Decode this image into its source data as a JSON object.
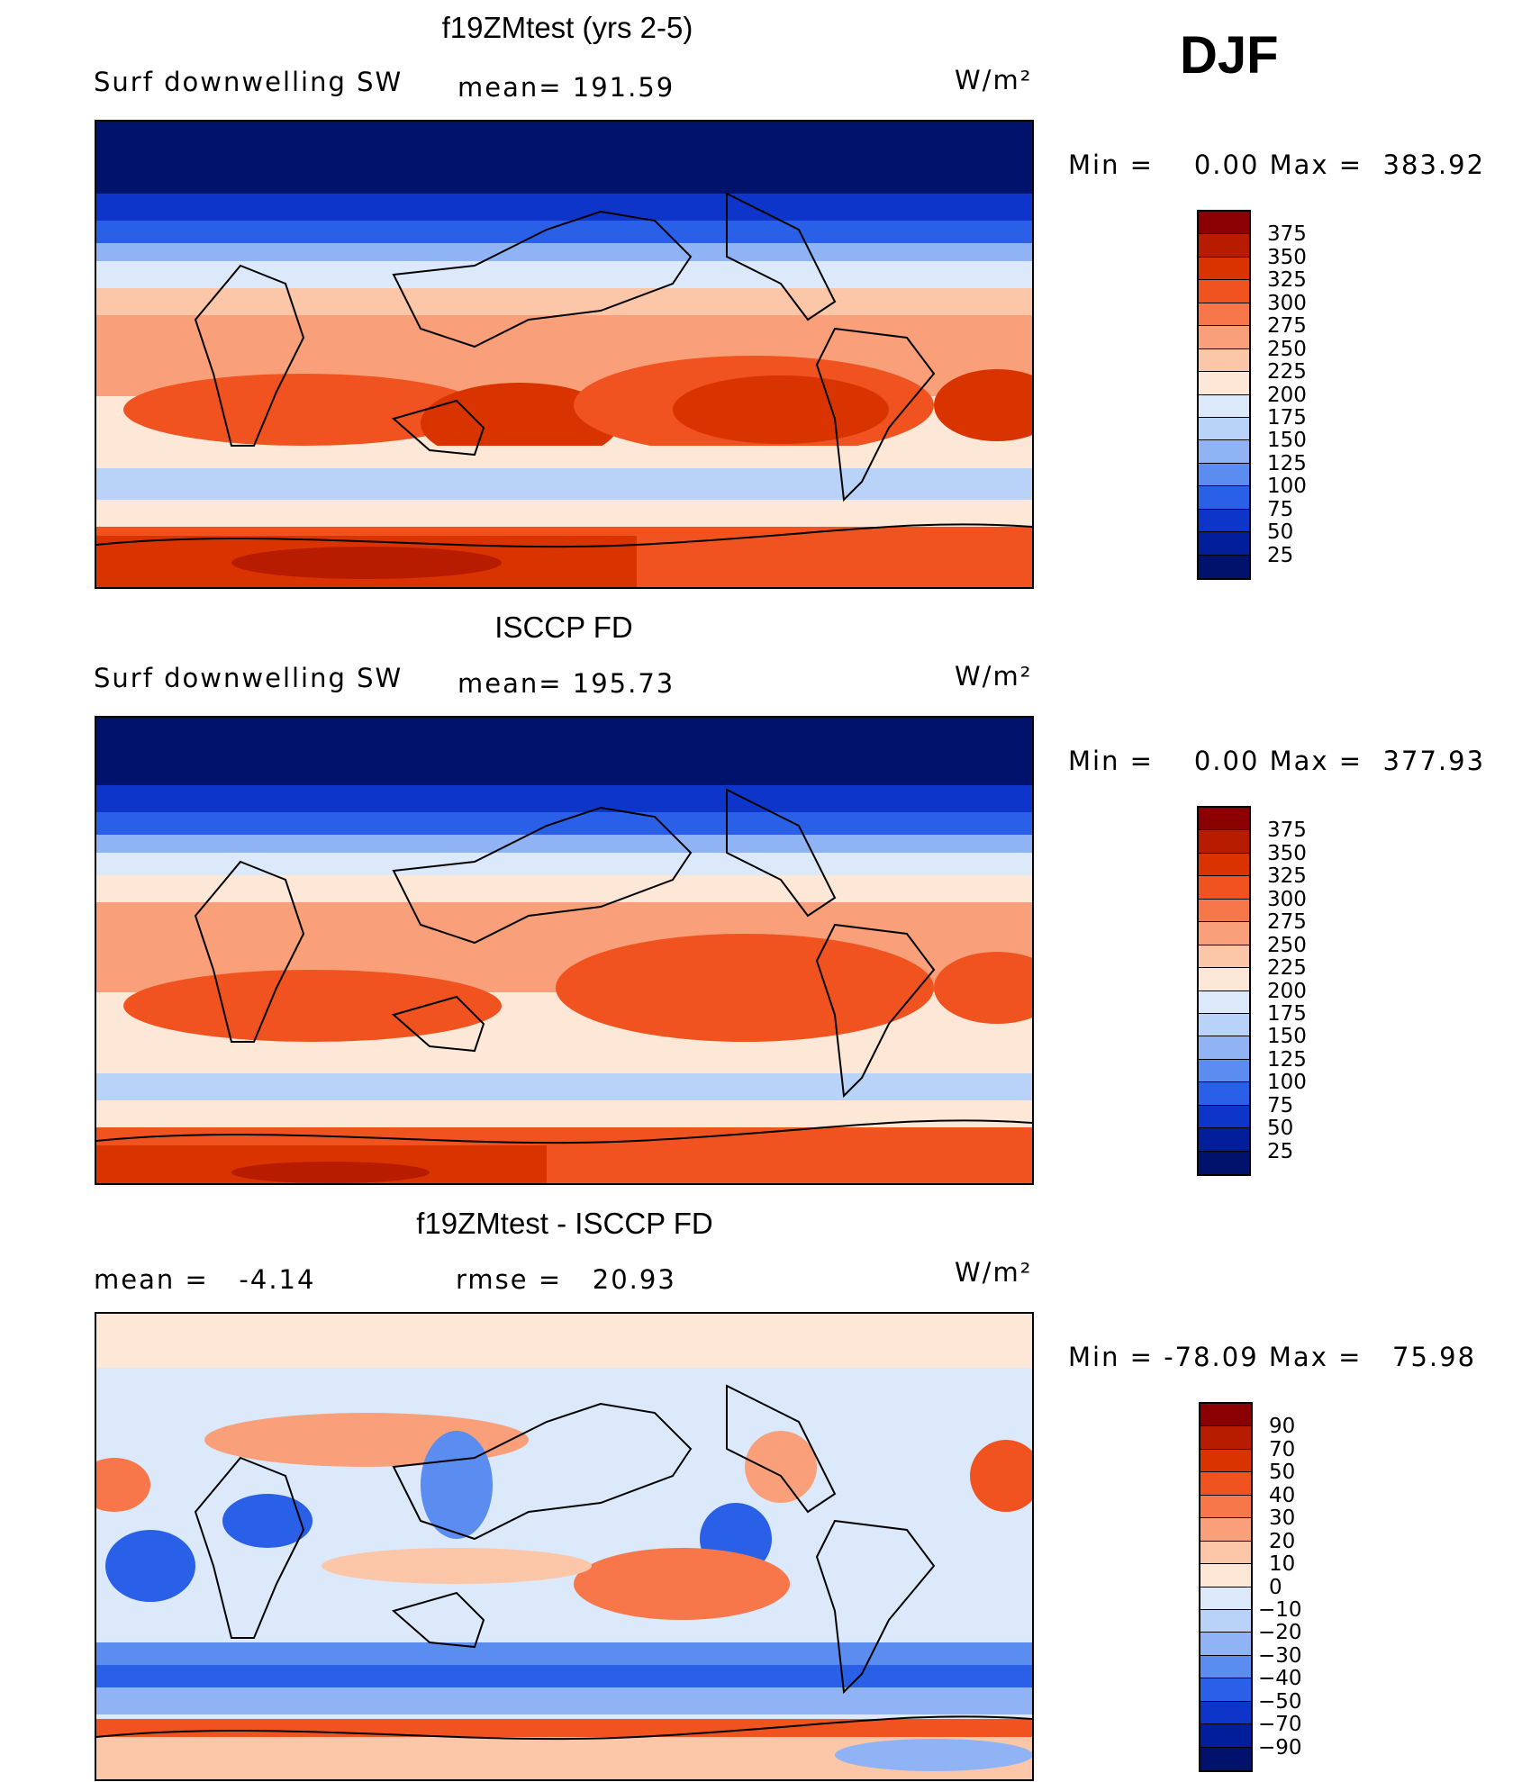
{
  "season": "DJF",
  "panels": [
    {
      "title": "f19ZMtest (yrs 2-5)",
      "left_label": "Surf downwelling SW",
      "mid_label": "mean= 191.59",
      "units": "W/m²",
      "minmax": "Min =    0.00 Max =  383.92",
      "colorbar": {
        "labels": [
          "375",
          "350",
          "325",
          "300",
          "275",
          "250",
          "225",
          "200",
          "175",
          "150",
          "125",
          "100",
          "75",
          "50",
          "25"
        ],
        "colors": [
          "#8b0000",
          "#b81c00",
          "#d93300",
          "#f0531f",
          "#f7774a",
          "#f9a07a",
          "#fbc7a8",
          "#fde8d7",
          "#dbe9fb",
          "#b9d2f7",
          "#8fb3f5",
          "#5b8cf0",
          "#2a5fe8",
          "#0d35c9",
          "#031e9b",
          "#00126b"
        ]
      }
    },
    {
      "title": "ISCCP FD",
      "left_label": "Surf downwelling SW",
      "mid_label": "mean= 195.73",
      "units": "W/m²",
      "minmax": "Min =    0.00 Max =  377.93",
      "colorbar": {
        "labels": [
          "375",
          "350",
          "325",
          "300",
          "275",
          "250",
          "225",
          "200",
          "175",
          "150",
          "125",
          "100",
          "75",
          "50",
          "25"
        ],
        "colors": [
          "#8b0000",
          "#b81c00",
          "#d93300",
          "#f0531f",
          "#f7774a",
          "#f9a07a",
          "#fbc7a8",
          "#fde8d7",
          "#dbe9fb",
          "#b9d2f7",
          "#8fb3f5",
          "#5b8cf0",
          "#2a5fe8",
          "#0d35c9",
          "#031e9b",
          "#00126b"
        ]
      }
    },
    {
      "title": "f19ZMtest - ISCCP FD",
      "left_label": "mean =   -4.14",
      "mid_label": "rmse =   20.93",
      "units": "W/m²",
      "minmax": "Min = -78.09 Max =   75.98",
      "colorbar": {
        "labels": [
          "90",
          "70",
          "50",
          "40",
          "30",
          "20",
          "10",
          "0",
          "-10",
          "-20",
          "-30",
          "-40",
          "-50",
          "-70",
          "-90"
        ],
        "colors": [
          "#8b0000",
          "#b81c00",
          "#d93300",
          "#f0531f",
          "#f7774a",
          "#f9a07a",
          "#fbc7a8",
          "#fde8d7",
          "#dbe9fb",
          "#b9d2f7",
          "#8fb3f5",
          "#5b8cf0",
          "#2a5fe8",
          "#0d35c9",
          "#031e9b",
          "#00126b"
        ]
      }
    }
  ]
}
